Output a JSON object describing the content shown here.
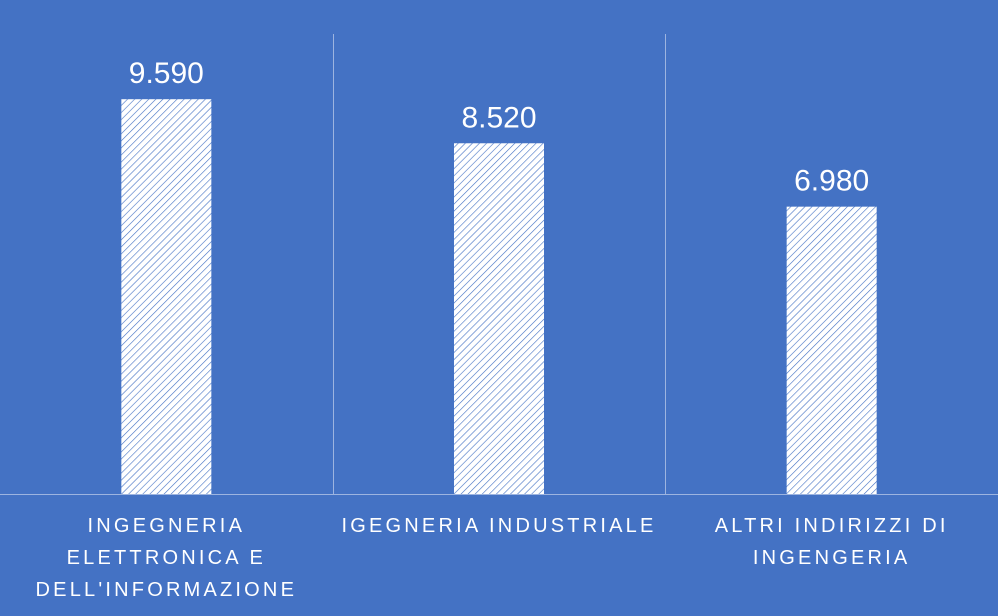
{
  "chart_data": {
    "type": "bar",
    "title": "",
    "xlabel": "",
    "ylabel": "",
    "categories": [
      "INGEGNERIA ELETTRONICA E DELL'INFORMAZIONE",
      "IGEGNERIA INDUSTRIALE",
      "ALTRI INDIRIZZI DI INGENGERIA"
    ],
    "category_label_lines": [
      [
        "INGEGNERIA",
        "ELETTRONICA E",
        "DELL'INFORMAZIONE"
      ],
      [
        "IGEGNERIA INDUSTRIALE"
      ],
      [
        "ALTRI INDIRIZZI DI",
        "INGENGERIA"
      ]
    ],
    "values": [
      9590,
      8520,
      6980
    ],
    "value_labels": [
      "9.590",
      "8.520",
      "6.980"
    ],
    "ylim": [
      0,
      12000
    ],
    "grid": false,
    "legend": "none",
    "colors": {
      "background": "#4472C4",
      "bar_fill": "#FFFFFF",
      "bar_hatch": "#4472C4",
      "text": "#FFFFFF",
      "axis_line": "#9DB4E0"
    }
  }
}
